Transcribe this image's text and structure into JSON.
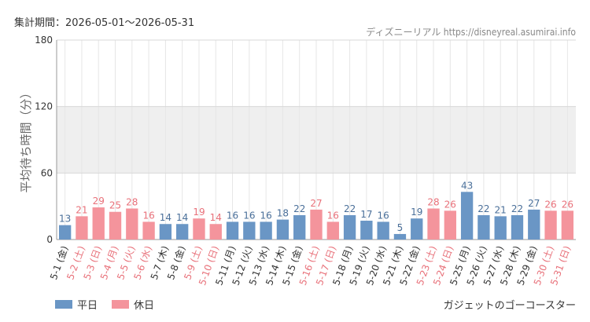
{
  "header": {
    "period_label": "集計期間：2026-05-01～2026-05-31",
    "credit": "ディズニーリアル https://disneyreal.asumirai.info"
  },
  "footer": {
    "attraction": "ガジェットのゴーコースター"
  },
  "colors": {
    "weekday": "#6a96c5",
    "holiday": "#f4949c",
    "weekday_text": "#4a6f99",
    "holiday_text": "#e8717a",
    "band": "#efefef",
    "grid": "#e6e6e6"
  },
  "chart_data": {
    "type": "bar",
    "title": "",
    "xlabel": "",
    "ylabel": "平均待ち時間（分）",
    "ylim": [
      0,
      180
    ],
    "yticks": [
      0,
      60,
      120,
      180
    ],
    "grid": true,
    "shaded_band": [
      60,
      120
    ],
    "legend_position": "bottom-left",
    "legend": [
      {
        "name": "平日",
        "color": "#6a96c5"
      },
      {
        "name": "休日",
        "color": "#f4949c"
      }
    ],
    "categories": [
      "5-1 (金)",
      "5-2 (土)",
      "5-3 (日)",
      "5-4 (月)",
      "5-5 (火)",
      "5-6 (水)",
      "5-7 (木)",
      "5-8 (金)",
      "5-9 (土)",
      "5-10 (日)",
      "5-11 (月)",
      "5-12 (火)",
      "5-13 (水)",
      "5-14 (木)",
      "5-15 (金)",
      "5-16 (土)",
      "5-17 (日)",
      "5-18 (月)",
      "5-19 (火)",
      "5-20 (水)",
      "5-21 (木)",
      "5-22 (金)",
      "5-23 (土)",
      "5-24 (日)",
      "5-25 (月)",
      "5-26 (火)",
      "5-27 (水)",
      "5-28 (木)",
      "5-29 (金)",
      "5-30 (土)",
      "5-31 (日)"
    ],
    "values": [
      13,
      21,
      29,
      25,
      28,
      16,
      14,
      14,
      19,
      14,
      16,
      16,
      16,
      18,
      22,
      27,
      16,
      22,
      17,
      16,
      5,
      19,
      28,
      26,
      43,
      22,
      21,
      22,
      27,
      26,
      26
    ],
    "day_type": [
      "平日",
      "休日",
      "休日",
      "休日",
      "休日",
      "休日",
      "平日",
      "平日",
      "休日",
      "休日",
      "平日",
      "平日",
      "平日",
      "平日",
      "平日",
      "休日",
      "休日",
      "平日",
      "平日",
      "平日",
      "平日",
      "平日",
      "休日",
      "休日",
      "平日",
      "平日",
      "平日",
      "平日",
      "平日",
      "休日",
      "休日"
    ]
  }
}
